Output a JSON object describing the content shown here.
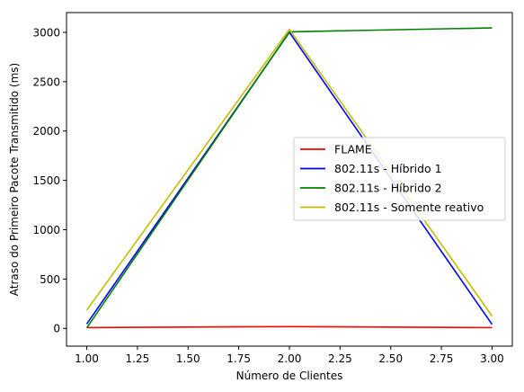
{
  "chart_data": {
    "type": "line",
    "title": "",
    "xlabel": "Número de Clientes",
    "ylabel": "Atraso do Primeiro Pacote Transmitido (ms)",
    "xlim": [
      0.9,
      3.1
    ],
    "ylim": [
      -180,
      3200
    ],
    "x_ticks": [
      1.0,
      1.25,
      1.5,
      1.75,
      2.0,
      2.25,
      2.5,
      2.75,
      3.0
    ],
    "x_tick_labels": [
      "1.00",
      "1.25",
      "1.50",
      "1.75",
      "2.00",
      "2.25",
      "2.50",
      "2.75",
      "3.00"
    ],
    "y_ticks": [
      0,
      500,
      1000,
      1500,
      2000,
      2500,
      3000
    ],
    "y_tick_labels": [
      "0",
      "500",
      "1000",
      "1500",
      "2000",
      "2500",
      "3000"
    ],
    "grid": false,
    "legend_position": "center-right",
    "x": [
      1.0,
      2.0,
      3.0
    ],
    "series": [
      {
        "name": "FLAME",
        "color": "#ff0000",
        "values": [
          8,
          18,
          8
        ]
      },
      {
        "name": "802.11s - Híbrido 1",
        "color": "#0000ff",
        "values": [
          45,
          3000,
          40
        ]
      },
      {
        "name": "802.11s - Híbrido 2",
        "color": "#008000",
        "values": [
          5,
          3005,
          3045
        ]
      },
      {
        "name": "802.11s - Somente reativo",
        "color": "#bfbf00",
        "values": [
          185,
          3030,
          125
        ]
      }
    ]
  }
}
